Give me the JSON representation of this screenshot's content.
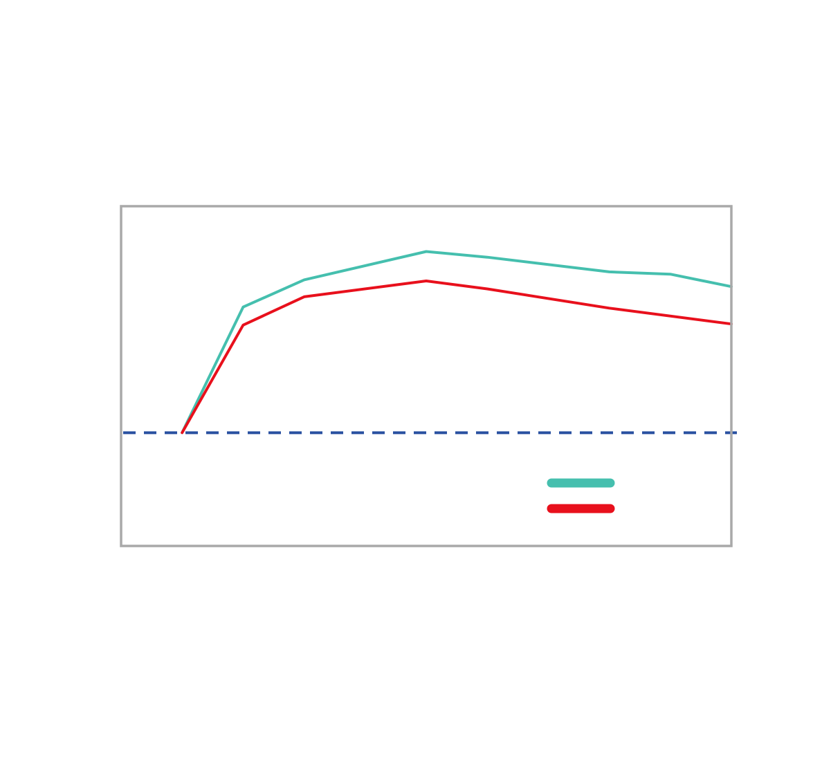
{
  "chart_data": {
    "type": "line",
    "title": "",
    "xlabel": "",
    "ylabel": "",
    "x": [
      0,
      1,
      2,
      3,
      4,
      5,
      6,
      7,
      8,
      9,
      10
    ],
    "xlim": [
      0,
      10
    ],
    "ylim": [
      -1,
      2
    ],
    "series": [
      {
        "name": "",
        "color": "#45bfae",
        "values": [
          null,
          0,
          1.11,
          1.35,
          null,
          1.6,
          1.55,
          null,
          1.42,
          1.4,
          1.29
        ]
      },
      {
        "name": "",
        "color": "#e8101c",
        "values": [
          null,
          0,
          0.95,
          1.2,
          null,
          1.34,
          1.27,
          null,
          1.1,
          null,
          0.96
        ]
      }
    ],
    "reference_line": {
      "y": 0,
      "style": "dashed",
      "color": "#2950a0"
    },
    "legend": {
      "placement": "bottom-right",
      "entries": [
        "",
        ""
      ]
    },
    "grid": false,
    "frame_color": "#a9a9a9"
  }
}
